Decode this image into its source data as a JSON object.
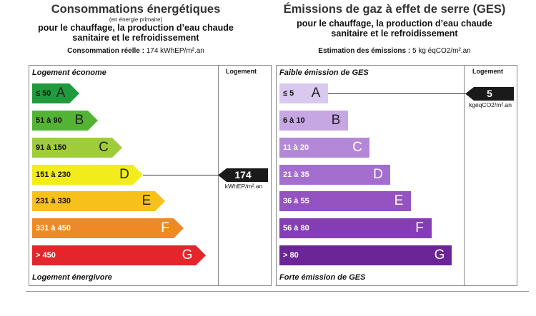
{
  "energy": {
    "title": "Consommations énergétiques",
    "note": "(en énergie primaire)",
    "subtitle_line1": "pour le chauffage, la production d’eau chaude",
    "subtitle_line2": "sanitaire et le refroidissement",
    "measure_label": "Consommation réelle :",
    "measure_value": "174 kWhEP/m².an",
    "top_label": "Logement économe",
    "bottom_label": "Logement énergivore",
    "column_label": "Logement",
    "marker_value": "174",
    "marker_unit": "kWhEP/m².an",
    "active_class": "D",
    "classes": [
      {
        "range": "≤ 50",
        "letter": "A",
        "color": "#1f9a3c"
      },
      {
        "range": "51 à 90",
        "letter": "B",
        "color": "#53b334"
      },
      {
        "range": "91 à 150",
        "letter": "C",
        "color": "#9fcd3a"
      },
      {
        "range": "151 à 230",
        "letter": "D",
        "color": "#f2ed1a"
      },
      {
        "range": "231 à 330",
        "letter": "E",
        "color": "#f7c11c"
      },
      {
        "range": "331 à 450",
        "letter": "F",
        "color": "#ee8a23"
      },
      {
        "range": "> 450",
        "letter": "G",
        "color": "#e3262b"
      }
    ]
  },
  "ges": {
    "title": "Émissions de gaz à effet de serre (GES)",
    "subtitle_line1": "pour le chauffage, la production d’eau chaude",
    "subtitle_line2": "sanitaire et le refroidissement",
    "measure_label": "Estimation des émissions :",
    "measure_value": "5 kg éqCO2/m².an",
    "top_label": "Faible émission de GES",
    "bottom_label": "Forte émission de GES",
    "column_label": "Logement",
    "marker_value": "5",
    "marker_unit": "kgéqCO2/m².an",
    "active_class": "A",
    "classes": [
      {
        "range": "≤ 5",
        "letter": "A",
        "color": "#d9c9ef"
      },
      {
        "range": "6 à 10",
        "letter": "B",
        "color": "#c6a7e4"
      },
      {
        "range": "11 à 20",
        "letter": "C",
        "color": "#b488d8"
      },
      {
        "range": "21 à 35",
        "letter": "D",
        "color": "#a36ecd"
      },
      {
        "range": "36 à 55",
        "letter": "E",
        "color": "#9453c1"
      },
      {
        "range": "56 à 80",
        "letter": "F",
        "color": "#843db4"
      },
      {
        "range": "> 80",
        "letter": "G",
        "color": "#6b2597"
      }
    ]
  }
}
